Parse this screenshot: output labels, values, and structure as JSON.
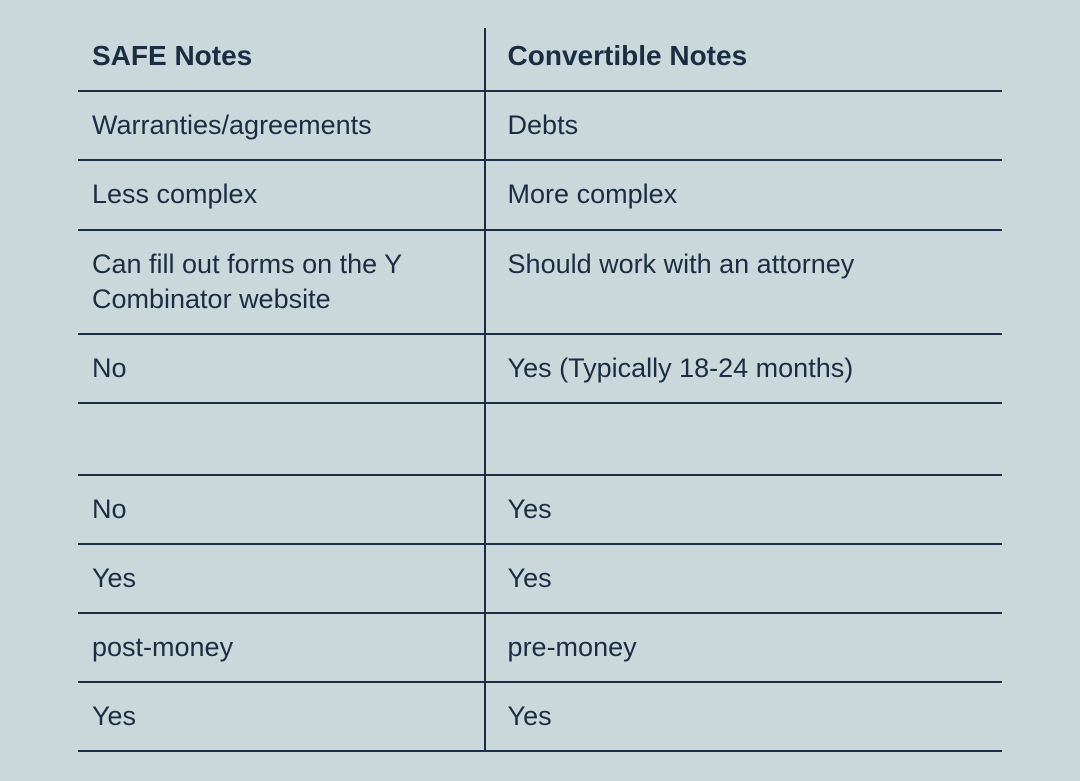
{
  "table": {
    "type": "table",
    "background_color": "#cad8dc",
    "border_color": "#1a2d42",
    "text_color": "#1a2d42",
    "header_fontsize": 28,
    "cell_fontsize": 27,
    "border_width": 2,
    "column_widths_pct": [
      44,
      56
    ],
    "columns": [
      "SAFE  Notes",
      "Convertible Notes"
    ],
    "rows": [
      [
        "Warranties/agreements",
        "Debts"
      ],
      [
        "Less complex",
        "More complex"
      ],
      [
        "Can fill out forms on the Y Combinator website",
        "Should work with an attorney"
      ],
      [
        "No",
        "Yes (Typically 18-24 months)"
      ],
      [
        "",
        ""
      ],
      [
        "No",
        "Yes"
      ],
      [
        "Yes",
        "Yes"
      ],
      [
        "post-money",
        "pre-money"
      ],
      [
        "Yes",
        "Yes"
      ]
    ]
  }
}
